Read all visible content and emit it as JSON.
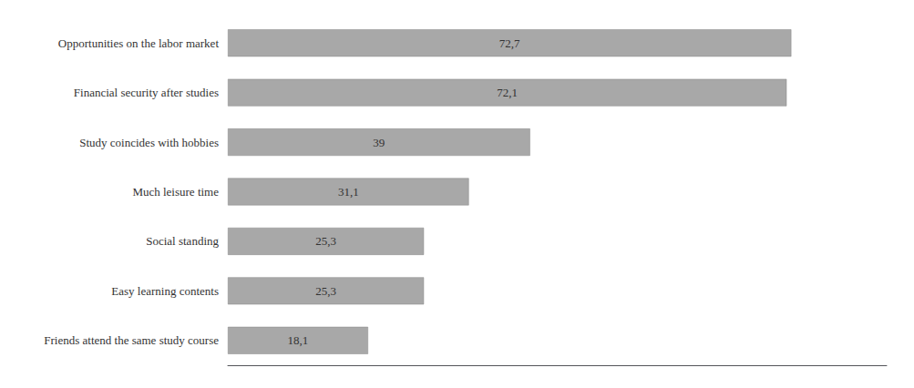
{
  "chart_data": {
    "type": "bar",
    "orientation": "horizontal",
    "categories": [
      "Friends attend the same study course",
      "Easy learning contents",
      "Social standing",
      "Much leisure time",
      "Study coincides with hobbies",
      "Financial security after studies",
      "Opportunities on the labor market"
    ],
    "values": [
      18.1,
      25.3,
      25.3,
      31.1,
      39.0,
      72.1,
      72.7
    ],
    "value_labels": [
      "18,1",
      "25,3",
      "25,3",
      "31,1",
      "39",
      "72,1",
      "72,7"
    ],
    "data_labels": true,
    "color": "#a8a8a8",
    "xlim": [
      0,
      85
    ],
    "xticks": [],
    "tick_labels": "y",
    "grid": false
  }
}
